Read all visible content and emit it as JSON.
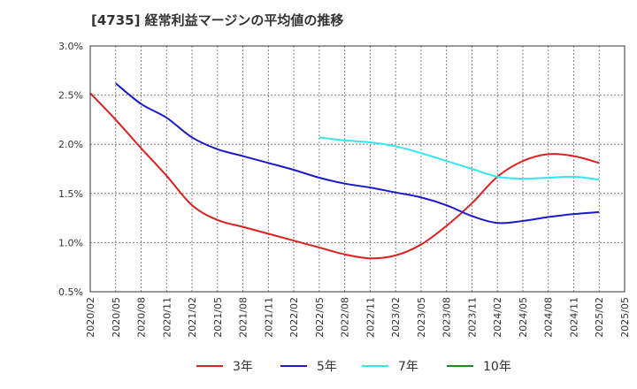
{
  "chart_data": {
    "type": "line",
    "title": "[4735]  経常利益マージンの平均値の推移",
    "xlabel": "",
    "ylabel": "",
    "ylim": [
      0.5,
      3.0
    ],
    "y_ticks": [
      "0.5%",
      "1.0%",
      "1.5%",
      "2.0%",
      "2.5%",
      "3.0%"
    ],
    "y_tick_values": [
      0.5,
      1.0,
      1.5,
      2.0,
      2.5,
      3.0
    ],
    "x_ticks": [
      "2020/02",
      "2020/05",
      "2020/08",
      "2020/11",
      "2021/02",
      "2021/05",
      "2021/08",
      "2021/11",
      "2022/02",
      "2022/05",
      "2022/08",
      "2022/11",
      "2023/02",
      "2023/05",
      "2023/08",
      "2023/11",
      "2024/02",
      "2024/05",
      "2024/08",
      "2024/11",
      "2025/02",
      "2025/05"
    ],
    "grid": true,
    "legend_position": "bottom",
    "series": [
      {
        "name": "3年",
        "color": "#dd1f1f",
        "points": [
          [
            "2020/02",
            2.52
          ],
          [
            "2020/05",
            2.25
          ],
          [
            "2020/08",
            1.96
          ],
          [
            "2020/11",
            1.68
          ],
          [
            "2021/02",
            1.38
          ],
          [
            "2021/05",
            1.23
          ],
          [
            "2021/08",
            1.16
          ],
          [
            "2021/11",
            1.09
          ],
          [
            "2022/02",
            1.02
          ],
          [
            "2022/05",
            0.95
          ],
          [
            "2022/08",
            0.88
          ],
          [
            "2022/11",
            0.84
          ],
          [
            "2023/02",
            0.87
          ],
          [
            "2023/05",
            0.98
          ],
          [
            "2023/08",
            1.17
          ],
          [
            "2023/11",
            1.4
          ],
          [
            "2024/02",
            1.67
          ],
          [
            "2024/05",
            1.83
          ],
          [
            "2024/08",
            1.9
          ],
          [
            "2024/11",
            1.88
          ],
          [
            "2025/02",
            1.81
          ]
        ]
      },
      {
        "name": "5年",
        "color": "#1a1acc",
        "points": [
          [
            "2020/05",
            2.62
          ],
          [
            "2020/08",
            2.41
          ],
          [
            "2020/11",
            2.27
          ],
          [
            "2021/02",
            2.07
          ],
          [
            "2021/05",
            1.95
          ],
          [
            "2021/08",
            1.88
          ],
          [
            "2021/11",
            1.81
          ],
          [
            "2022/02",
            1.74
          ],
          [
            "2022/05",
            1.66
          ],
          [
            "2022/08",
            1.6
          ],
          [
            "2022/11",
            1.56
          ],
          [
            "2023/02",
            1.51
          ],
          [
            "2023/05",
            1.46
          ],
          [
            "2023/08",
            1.38
          ],
          [
            "2023/11",
            1.27
          ],
          [
            "2024/02",
            1.2
          ],
          [
            "2024/05",
            1.22
          ],
          [
            "2024/08",
            1.26
          ],
          [
            "2024/11",
            1.29
          ],
          [
            "2025/02",
            1.31
          ]
        ]
      },
      {
        "name": "7年",
        "color": "#33e6f0",
        "points": [
          [
            "2022/05",
            2.07
          ],
          [
            "2022/08",
            2.04
          ],
          [
            "2022/11",
            2.02
          ],
          [
            "2023/02",
            1.98
          ],
          [
            "2023/05",
            1.91
          ],
          [
            "2023/08",
            1.83
          ],
          [
            "2023/11",
            1.75
          ],
          [
            "2024/02",
            1.67
          ],
          [
            "2024/05",
            1.65
          ],
          [
            "2024/08",
            1.66
          ],
          [
            "2024/11",
            1.67
          ],
          [
            "2025/02",
            1.64
          ]
        ]
      },
      {
        "name": "10年",
        "color": "#1e8a1e",
        "points": []
      }
    ]
  }
}
